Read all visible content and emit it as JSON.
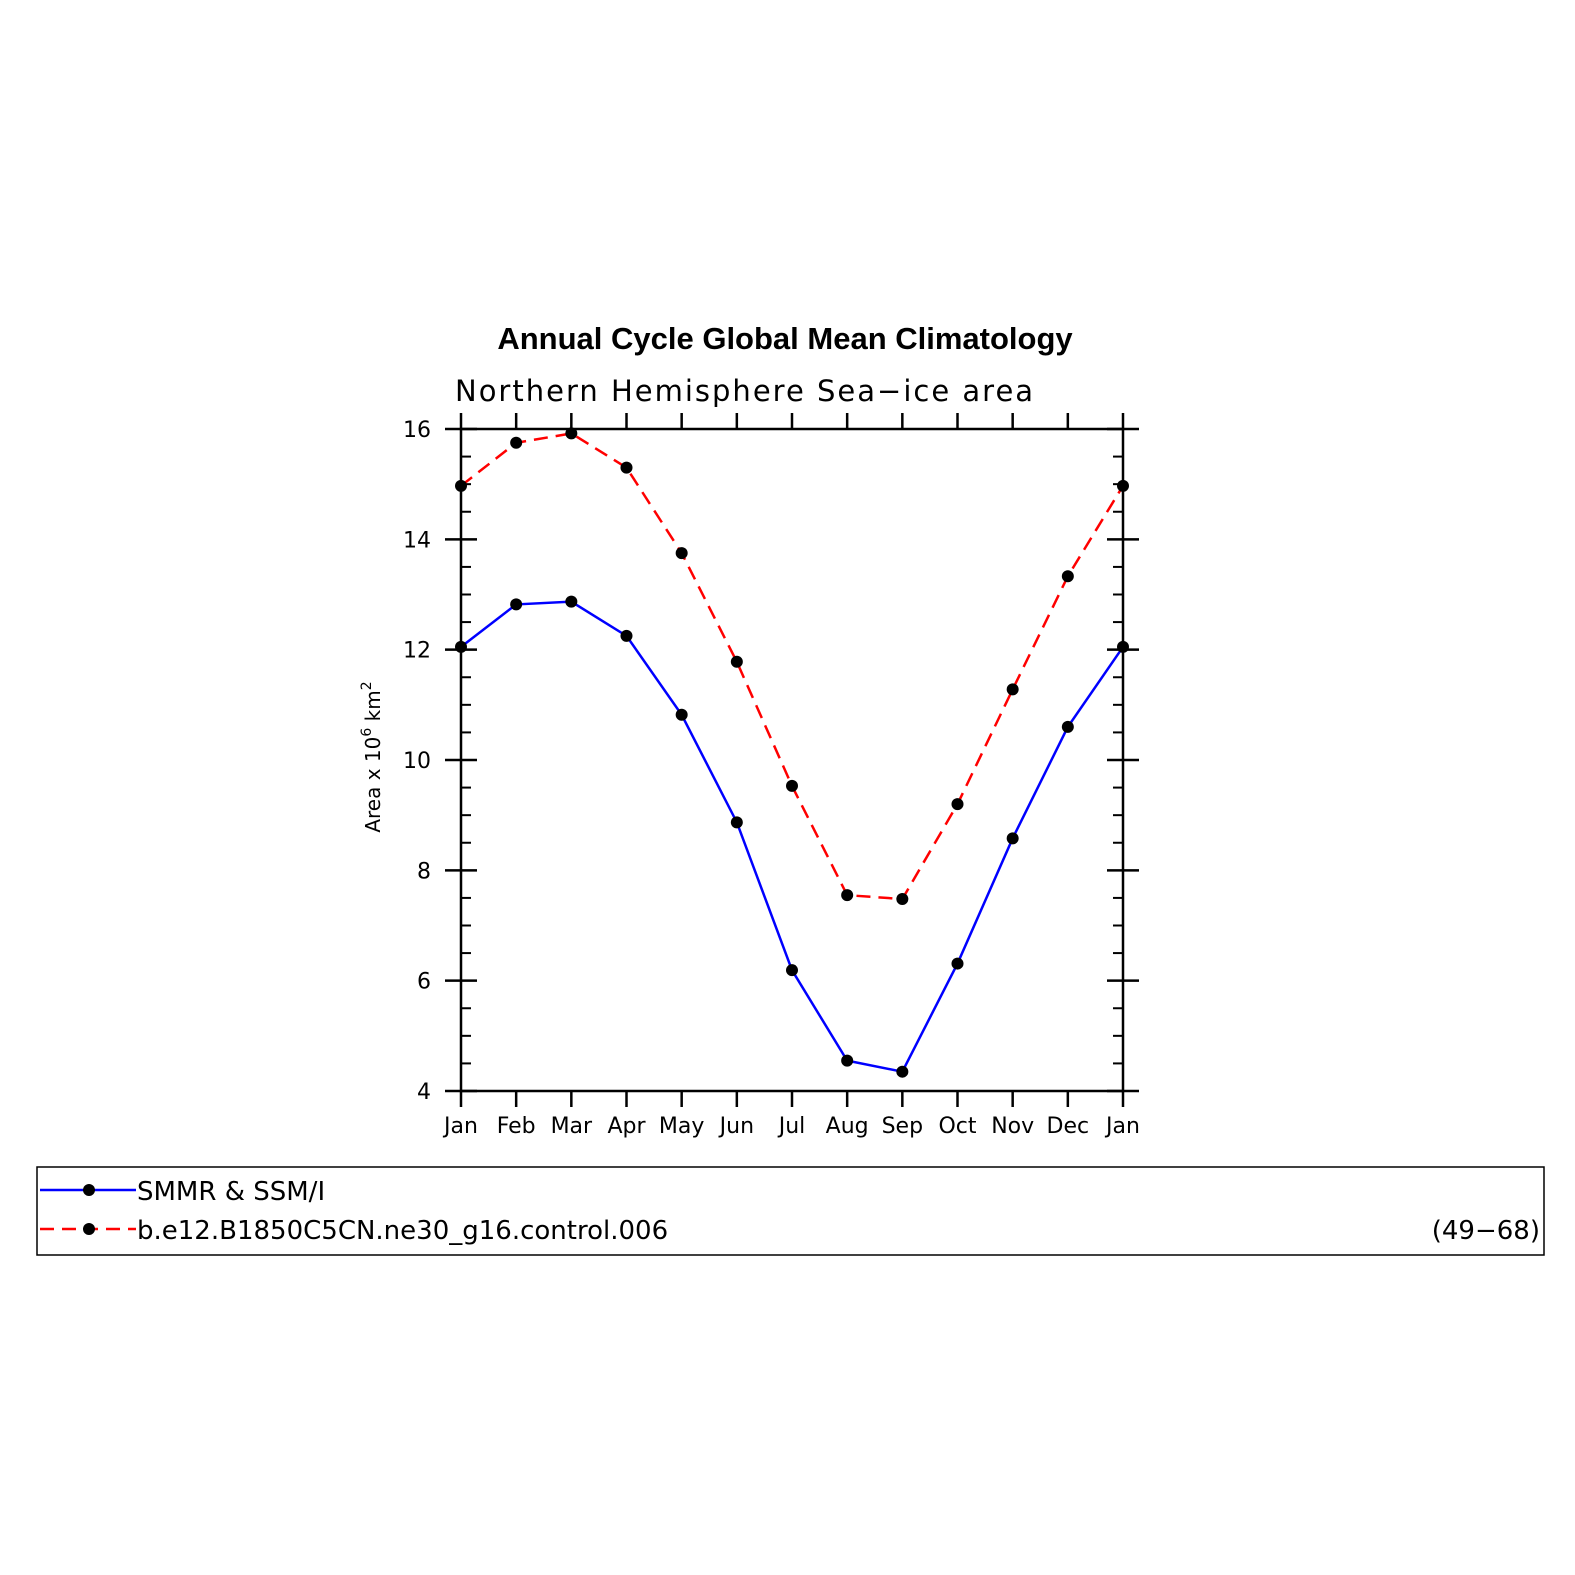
{
  "chart_data": {
    "type": "line",
    "title": "Annual Cycle Global Mean Climatology",
    "subtitle": "Northern Hemisphere Sea−ice area",
    "ylabel_main": "Area x 10",
    "ylabel_exp": "6",
    "ylabel_unit": "km",
    "ylabel_unit_exp": "2",
    "categories": [
      "Jan",
      "Feb",
      "Mar",
      "Apr",
      "May",
      "Jun",
      "Jul",
      "Aug",
      "Sep",
      "Oct",
      "Nov",
      "Dec",
      "Jan"
    ],
    "ylim": [
      4,
      16
    ],
    "yticks": [
      "4",
      "6",
      "8",
      "10",
      "12",
      "14",
      "16"
    ],
    "series": [
      {
        "name": "SMMR & SSM/I",
        "color": "#0000ff",
        "style": "solid",
        "values": [
          12.05,
          12.82,
          12.87,
          12.25,
          10.82,
          8.87,
          6.19,
          4.55,
          4.35,
          6.31,
          8.58,
          10.6,
          12.05
        ]
      },
      {
        "name": "b.e12.B1850C5CN.ne30_g16.control.006",
        "color": "#ff0000",
        "style": "dashed",
        "values": [
          14.97,
          15.75,
          15.92,
          15.3,
          13.75,
          11.78,
          9.53,
          7.55,
          7.48,
          9.2,
          11.28,
          13.33,
          14.97
        ]
      }
    ],
    "legend_note": "(49−68)",
    "legend_position": "bottom",
    "marker_color": "#000000",
    "grid": false
  }
}
